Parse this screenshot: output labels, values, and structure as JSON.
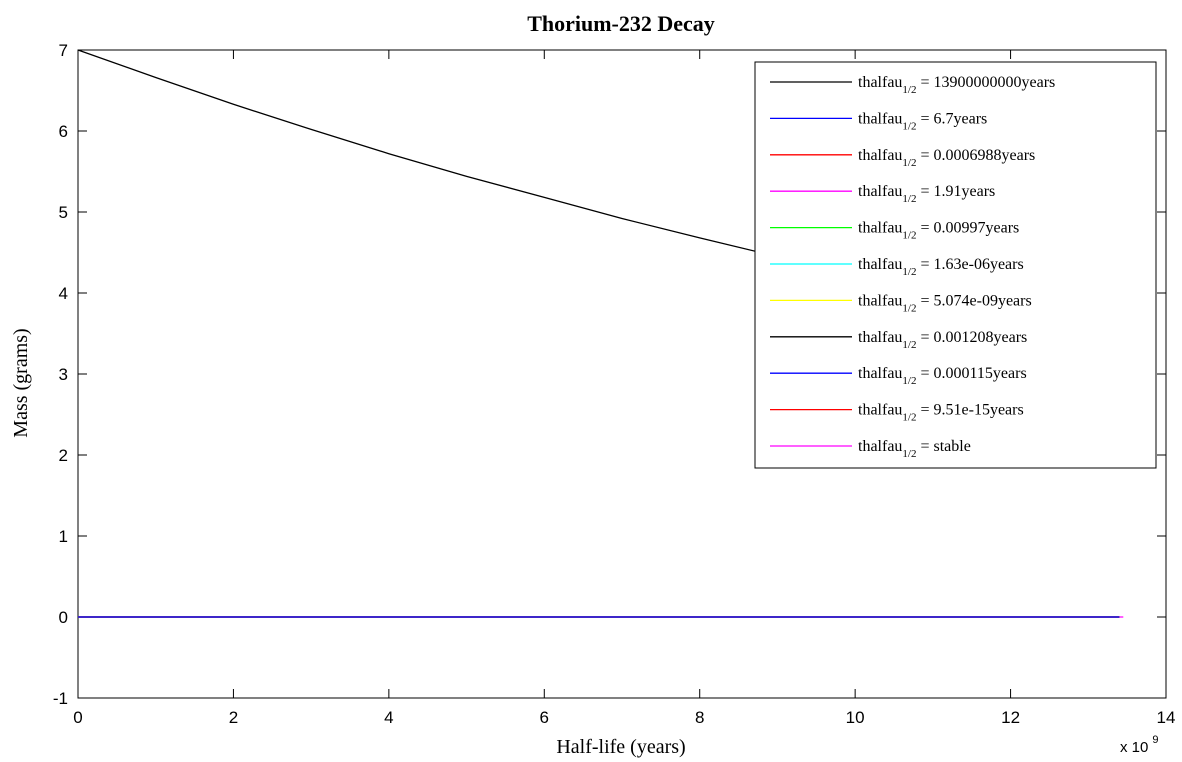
{
  "chart_data": {
    "type": "line",
    "title": "Thorium-232 Decay",
    "xlabel": "Half-life (years)",
    "ylabel": "Mass (grams)",
    "x_exponent_base": "x 10",
    "x_exponent_power": "9",
    "xlim": [
      0,
      14
    ],
    "ylim": [
      -1,
      7
    ],
    "xticks": [
      0,
      2,
      4,
      6,
      8,
      10,
      12,
      14
    ],
    "xtick_labels": [
      "0",
      "2",
      "4",
      "6",
      "8",
      "10",
      "12",
      "14"
    ],
    "yticks": [
      -1,
      0,
      1,
      2,
      3,
      4,
      5,
      6,
      7
    ],
    "ytick_labels": [
      "-1",
      "0",
      "1",
      "2",
      "3",
      "4",
      "5",
      "6",
      "7"
    ],
    "grid": false,
    "legend_position": "top-right",
    "legend_prefix": "thalfau",
    "legend_subscript": "1/2",
    "series": [
      {
        "name": "thalfau_{1/2} = 13900000000years",
        "legend_value": " = 13900000000years",
        "color": "#000000",
        "x": [
          0,
          1,
          2,
          3,
          4,
          5,
          6,
          7,
          8,
          9
        ],
        "y": [
          7.0,
          6.66,
          6.33,
          6.02,
          5.72,
          5.44,
          5.18,
          4.92,
          4.68,
          4.45
        ]
      },
      {
        "name": "thalfau_{1/2} = 6.7years",
        "legend_value": " = 6.7years",
        "color": "#0000ff",
        "x": [
          0,
          13.4
        ],
        "y": [
          0,
          0
        ]
      },
      {
        "name": "thalfau_{1/2} = 0.0006988years",
        "legend_value": " = 0.0006988years",
        "color": "#ff0000",
        "x": [
          0,
          13.4
        ],
        "y": [
          0,
          0
        ]
      },
      {
        "name": "thalfau_{1/2} = 1.91years",
        "legend_value": " = 1.91years",
        "color": "#ff00ff",
        "x": [
          0,
          13.4
        ],
        "y": [
          0,
          0
        ]
      },
      {
        "name": "thalfau_{1/2} = 0.00997years",
        "legend_value": " = 0.00997years",
        "color": "#00ff00",
        "x": [
          0,
          13.4
        ],
        "y": [
          0,
          0
        ]
      },
      {
        "name": "thalfau_{1/2} = 1.63e-06years",
        "legend_value": " = 1.63e-06years",
        "color": "#00ffff",
        "x": [
          0,
          13.4
        ],
        "y": [
          0,
          0
        ]
      },
      {
        "name": "thalfau_{1/2} = 5.074e-09years",
        "legend_value": " = 5.074e-09years",
        "color": "#ffff00",
        "x": [
          0,
          13.4
        ],
        "y": [
          0,
          0
        ]
      },
      {
        "name": "thalfau_{1/2} = 0.001208years",
        "legend_value": " = 0.001208years",
        "color": "#000000",
        "x": [
          0,
          13.4
        ],
        "y": [
          0,
          0
        ]
      },
      {
        "name": "thalfau_{1/2} = 0.000115years",
        "legend_value": " = 0.000115years",
        "color": "#0000ff",
        "x": [
          0,
          13.4
        ],
        "y": [
          0,
          0
        ]
      },
      {
        "name": "thalfau_{1/2} = 9.51e-15years",
        "legend_value": " = 9.51e-15years",
        "color": "#ff0000",
        "x": [
          0,
          13.4
        ],
        "y": [
          0,
          0
        ]
      },
      {
        "name": "thalfau_{1/2} = stable",
        "legend_value": " = stable",
        "color": "#ff00ff",
        "x": [
          0,
          13.45
        ],
        "y": [
          0,
          0
        ]
      }
    ]
  }
}
